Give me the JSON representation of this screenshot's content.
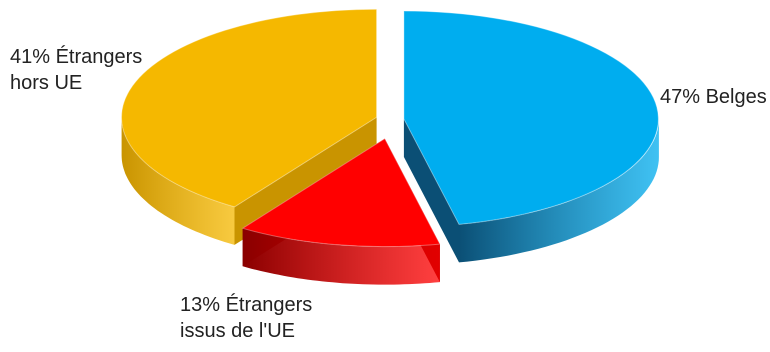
{
  "chart_data": {
    "type": "pie",
    "style": "3d-exploded",
    "slices": [
      {
        "label_line1": "47% Belges",
        "label_line2": "",
        "value": 47,
        "color": "#00adef",
        "side_color": "#0b4f75"
      },
      {
        "label_line1": "13% Étrangers",
        "label_line2": "issus de l'UE",
        "value": 13,
        "color": "#ff0000",
        "side_color": "#8a0000"
      },
      {
        "label_line1": "41% Étrangers",
        "label_line2": "hors UE",
        "value": 41,
        "color": "#f5b800",
        "side_color": "#c99400"
      }
    ]
  }
}
